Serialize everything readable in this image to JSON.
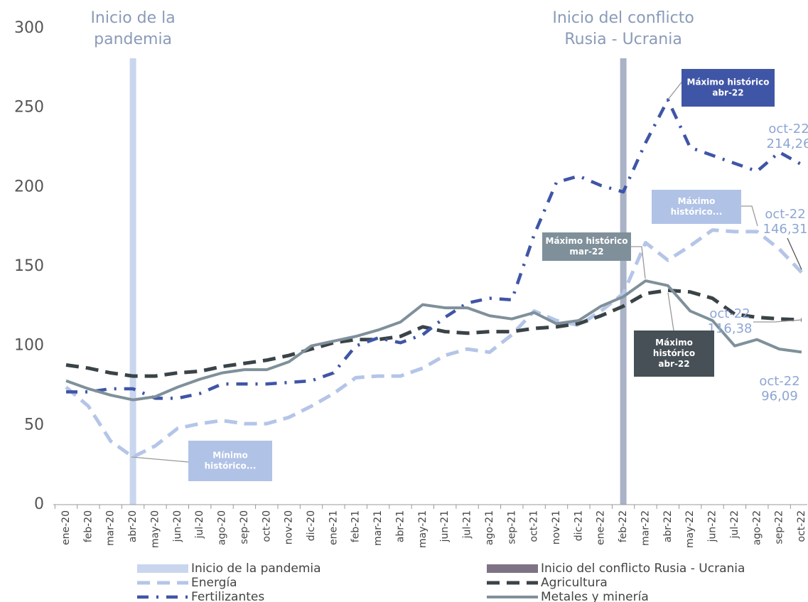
{
  "chart_data": {
    "type": "line",
    "categories": [
      "ene-20",
      "feb-20",
      "mar-20",
      "abr-20",
      "may-20",
      "jun-20",
      "jul-20",
      "ago-20",
      "sep-20",
      "oct-20",
      "nov-20",
      "dic-20",
      "ene-21",
      "feb-21",
      "mar-21",
      "abr-21",
      "may-21",
      "jun-21",
      "jul-21",
      "ago-21",
      "sep-21",
      "oct-21",
      "nov-21",
      "dic-21",
      "ene-22",
      "feb-22",
      "mar-22",
      "abr-22",
      "may-22",
      "jun-22",
      "jul-22",
      "ago-22",
      "sep-22",
      "oct-22"
    ],
    "ylim": [
      0,
      300
    ],
    "yticks": [
      0,
      50,
      100,
      150,
      200,
      250,
      300
    ],
    "markers": [
      {
        "label": "Inicio de la pandemia",
        "title_lines": [
          "Inicio de la",
          "pandemia"
        ],
        "category": "abr-20",
        "color": "#c9d6ee"
      },
      {
        "label": "Inicio del conflicto Rusia - Ucrania",
        "title_lines": [
          "Inicio del conflicto",
          "Rusia - Ucrania"
        ],
        "category": "feb-22",
        "color": "#a9b2c6",
        "legend_color": "#7e7384"
      }
    ],
    "series": [
      {
        "name": "Energía",
        "color": "#b4c5e8",
        "dash": "dashed",
        "values": [
          74,
          62,
          40,
          30,
          37,
          48,
          51,
          53,
          51,
          51,
          55,
          62,
          70,
          80,
          81,
          81,
          86,
          94,
          98,
          96,
          107,
          122,
          116,
          113,
          122,
          133,
          165,
          154,
          163,
          173,
          172,
          172,
          161,
          146.31
        ],
        "value_labels": [
          null,
          null,
          null,
          null,
          null,
          null,
          null,
          null,
          null,
          null,
          null,
          null,
          null,
          null,
          null,
          null,
          null,
          null,
          null,
          null,
          null,
          null,
          null,
          null,
          null,
          null,
          null,
          null,
          null,
          null,
          null,
          null,
          null,
          "146,31"
        ]
      },
      {
        "name": "Agricultura",
        "color": "#3a4347",
        "dash": "dashed",
        "values": [
          88,
          86,
          83,
          81,
          81,
          83,
          84,
          87,
          89,
          91,
          94,
          98,
          102,
          104,
          104,
          106,
          112,
          109,
          108,
          109,
          109,
          111,
          112,
          114,
          119,
          125,
          133,
          135,
          134,
          130,
          120,
          118,
          117,
          116.38
        ],
        "value_labels": [
          null,
          null,
          null,
          null,
          null,
          null,
          null,
          null,
          null,
          null,
          null,
          null,
          null,
          null,
          null,
          null,
          null,
          null,
          null,
          null,
          null,
          null,
          null,
          null,
          null,
          null,
          null,
          null,
          null,
          null,
          null,
          null,
          null,
          "116,38"
        ]
      },
      {
        "name": "Fertilizantes",
        "color": "#3f55a6",
        "dash": "dashdot",
        "values": [
          71,
          71,
          73,
          73,
          67,
          67,
          70,
          76,
          76,
          76,
          77,
          78,
          83,
          100,
          105,
          102,
          107,
          118,
          127,
          130,
          129,
          170,
          203,
          207,
          201,
          197,
          228,
          255,
          225,
          220,
          215,
          210,
          222,
          214.26
        ],
        "value_labels": [
          null,
          null,
          null,
          null,
          null,
          null,
          null,
          null,
          null,
          null,
          null,
          null,
          null,
          null,
          null,
          null,
          null,
          null,
          null,
          null,
          null,
          null,
          null,
          null,
          null,
          null,
          null,
          null,
          null,
          null,
          null,
          null,
          null,
          "214,26"
        ]
      },
      {
        "name": "Metales y minería",
        "color": "#7f909a",
        "dash": "solid",
        "values": [
          78,
          73,
          69,
          66,
          68,
          74,
          79,
          83,
          85,
          85,
          90,
          100,
          103,
          106,
          110,
          115,
          126,
          124,
          124,
          119,
          117,
          121,
          114,
          116,
          125,
          131,
          141,
          138,
          122,
          116,
          100,
          104,
          98,
          96.09
        ],
        "value_labels": [
          null,
          null,
          null,
          null,
          null,
          null,
          null,
          null,
          null,
          null,
          null,
          null,
          null,
          null,
          null,
          null,
          null,
          null,
          null,
          null,
          null,
          null,
          null,
          null,
          null,
          null,
          null,
          null,
          null,
          null,
          null,
          null,
          null,
          "96,09"
        ]
      }
    ],
    "annotations": [
      {
        "lines": [
          "Mínimo",
          "histórico..."
        ],
        "color": "#b0c2e6"
      },
      {
        "lines": [
          "Máximo histórico",
          "mar-22"
        ],
        "color": "#7f909a"
      },
      {
        "lines": [
          "Máximo histórico",
          "abr-22"
        ],
        "color": "#3f55a6"
      },
      {
        "lines": [
          "Máximo",
          "histórico..."
        ],
        "color": "#b0c2e6"
      },
      {
        "lines": [
          "Máximo",
          "histórico",
          "abr-22"
        ],
        "color": "#465056"
      }
    ]
  }
}
